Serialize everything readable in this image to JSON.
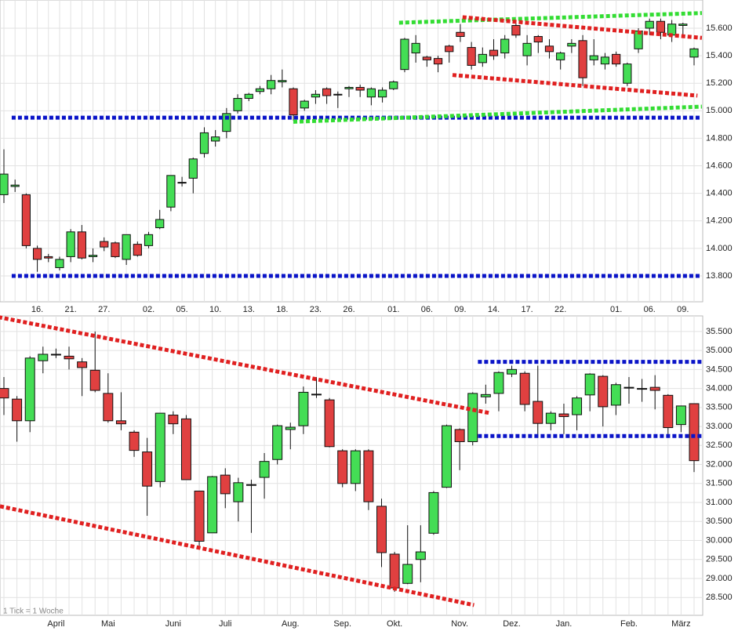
{
  "chart_data": [
    {
      "type": "candlestick",
      "up_color": "#44dd55",
      "down_color": "#e04040",
      "grid": true,
      "categories": [
        null,
        null,
        null,
        "16.",
        null,
        null,
        "21.",
        null,
        null,
        "27.",
        null,
        null,
        null,
        "02.",
        null,
        null,
        "05.",
        null,
        null,
        "10.",
        null,
        null,
        "13.",
        null,
        null,
        "18.",
        null,
        null,
        "23.",
        null,
        null,
        "26.",
        null,
        null,
        null,
        "01.",
        null,
        null,
        "06.",
        null,
        null,
        "09.",
        null,
        null,
        "14.",
        null,
        null,
        "17.",
        null,
        null,
        "22.",
        null,
        null,
        null,
        null,
        "01.",
        null,
        null,
        "06.",
        null,
        null,
        "09.",
        null
      ],
      "open": [
        14.39,
        14.45,
        14.39,
        14.0,
        13.94,
        13.86,
        13.94,
        14.12,
        13.94,
        14.05,
        14.04,
        13.92,
        14.03,
        14.02,
        14.15,
        14.3,
        14.48,
        14.51,
        14.69,
        14.78,
        14.85,
        15.0,
        15.09,
        15.14,
        15.16,
        15.21,
        15.16,
        15.02,
        15.1,
        15.16,
        15.12,
        15.16,
        15.17,
        15.1,
        15.1,
        15.16,
        15.3,
        15.42,
        15.39,
        15.38,
        15.47,
        15.57,
        15.46,
        15.35,
        15.44,
        15.42,
        15.62,
        15.4,
        15.54,
        15.47,
        15.37,
        15.47,
        15.51,
        15.37,
        15.34,
        15.41,
        15.2,
        15.45,
        15.6,
        15.65,
        15.55,
        15.62,
        15.39
      ],
      "high": [
        14.72,
        14.5,
        14.4,
        14.02,
        13.96,
        13.94,
        14.14,
        14.17,
        14.0,
        14.08,
        14.05,
        14.1,
        14.05,
        14.12,
        14.28,
        14.53,
        14.52,
        14.66,
        14.88,
        14.86,
        15.02,
        15.12,
        15.13,
        15.18,
        15.26,
        15.3,
        15.17,
        15.08,
        15.15,
        15.17,
        15.14,
        15.18,
        15.19,
        15.17,
        15.17,
        15.22,
        15.53,
        15.55,
        15.4,
        15.4,
        15.48,
        15.63,
        15.5,
        15.46,
        15.52,
        15.55,
        15.64,
        15.55,
        15.55,
        15.52,
        15.43,
        15.52,
        15.55,
        15.52,
        15.42,
        15.43,
        15.35,
        15.6,
        15.67,
        15.67,
        15.66,
        15.64,
        15.46
      ],
      "low": [
        14.33,
        14.41,
        14.0,
        13.83,
        13.9,
        13.84,
        13.9,
        13.92,
        13.9,
        13.98,
        13.93,
        13.88,
        13.94,
        14.0,
        14.14,
        14.27,
        14.45,
        14.4,
        14.66,
        14.74,
        14.8,
        14.98,
        15.07,
        15.12,
        15.12,
        15.17,
        14.93,
        15.0,
        15.05,
        15.05,
        15.02,
        15.1,
        15.1,
        15.04,
        15.06,
        15.15,
        15.28,
        15.35,
        15.32,
        15.28,
        15.35,
        15.5,
        15.3,
        15.32,
        15.37,
        15.38,
        15.53,
        15.33,
        15.42,
        15.38,
        15.3,
        15.42,
        15.18,
        15.33,
        15.3,
        15.32,
        15.18,
        15.42,
        15.55,
        15.52,
        15.5,
        15.55,
        15.33
      ],
      "close": [
        14.54,
        14.46,
        14.02,
        13.92,
        13.93,
        13.92,
        14.12,
        13.93,
        13.95,
        14.01,
        13.94,
        14.1,
        13.95,
        14.1,
        14.21,
        14.53,
        14.48,
        14.65,
        14.84,
        14.81,
        14.98,
        15.09,
        15.12,
        15.16,
        15.22,
        15.22,
        14.97,
        15.07,
        15.12,
        15.11,
        15.12,
        15.17,
        15.15,
        15.16,
        15.15,
        15.21,
        15.52,
        15.49,
        15.37,
        15.34,
        15.43,
        15.54,
        15.33,
        15.41,
        15.4,
        15.52,
        15.55,
        15.49,
        15.5,
        15.43,
        15.42,
        15.49,
        15.24,
        15.4,
        15.39,
        15.34,
        15.34,
        15.58,
        15.65,
        15.57,
        15.63,
        15.63,
        15.45
      ],
      "ylim": [
        13.612,
        15.805
      ],
      "yticks": [
        {
          "value": 13.8,
          "label": "13.800"
        },
        {
          "value": 14.0,
          "label": "14.000"
        },
        {
          "value": 14.2,
          "label": "14.200"
        },
        {
          "value": 14.4,
          "label": "14.400"
        },
        {
          "value": 14.6,
          "label": "14.600"
        },
        {
          "value": 14.8,
          "label": "14.800"
        },
        {
          "value": 15.0,
          "label": "15.000"
        },
        {
          "value": 15.2,
          "label": "15.200"
        },
        {
          "value": 15.4,
          "label": "15.400"
        },
        {
          "value": 15.6,
          "label": "15.600"
        }
      ],
      "lines": [
        {
          "color": "#0a14c8",
          "x": [
            0.7,
            62.7
          ],
          "y": [
            14.95,
            14.95
          ]
        },
        {
          "color": "#0a14c8",
          "x": [
            0.7,
            62.7
          ],
          "y": [
            13.8,
            13.8
          ]
        },
        {
          "color": "#33dd33",
          "x": [
            35.5,
            62.7
          ],
          "y": [
            15.64,
            15.71
          ]
        },
        {
          "color": "#33dd33",
          "x": [
            26,
            62.7
          ],
          "y": [
            14.92,
            15.03
          ]
        },
        {
          "color": "#e02020",
          "x": [
            41.2,
            62.7
          ],
          "y": [
            15.68,
            15.53
          ]
        },
        {
          "color": "#e02020",
          "x": [
            40.3,
            62.3
          ],
          "y": [
            15.26,
            15.11
          ]
        }
      ]
    },
    {
      "type": "candlestick",
      "up_color": "#44dd55",
      "down_color": "#e04040",
      "grid": true,
      "annotation": "1 Tick = 1 Woche",
      "categories": [
        null,
        null,
        null,
        null,
        "April",
        null,
        null,
        null,
        "Mai",
        null,
        null,
        null,
        null,
        "Juni",
        null,
        null,
        null,
        "Juli",
        null,
        null,
        null,
        null,
        "Aug.",
        null,
        null,
        null,
        "Sep.",
        null,
        null,
        null,
        "Okt.",
        null,
        null,
        null,
        null,
        "Nov.",
        null,
        null,
        null,
        "Dez.",
        null,
        null,
        null,
        "Jan.",
        null,
        null,
        null,
        null,
        "Feb.",
        null,
        null,
        null,
        "März",
        null
      ],
      "open": [
        34.0,
        33.72,
        33.15,
        34.73,
        34.88,
        34.85,
        34.7,
        34.48,
        33.87,
        33.15,
        32.85,
        32.33,
        31.55,
        33.3,
        33.2,
        31.3,
        30.2,
        31.72,
        31.02,
        31.45,
        31.66,
        32.13,
        32.92,
        33.02,
        33.85,
        33.7,
        32.36,
        31.5,
        32.36,
        30.9,
        29.64,
        28.87,
        29.5,
        30.19,
        31.4,
        32.92,
        32.6,
        33.78,
        33.87,
        34.38,
        34.4,
        33.66,
        33.08,
        33.33,
        33.31,
        33.83,
        34.32,
        33.56,
        34.03,
        34.0,
        34.03,
        33.82,
        33.05,
        33.6
      ],
      "high": [
        34.3,
        33.8,
        34.85,
        35.1,
        35.05,
        35.1,
        34.8,
        35.5,
        34.4,
        33.9,
        32.9,
        32.7,
        33.35,
        33.4,
        33.3,
        31.3,
        31.7,
        31.9,
        31.65,
        31.6,
        32.3,
        33.05,
        33.1,
        34.05,
        34.3,
        33.75,
        32.4,
        32.4,
        32.4,
        31.1,
        29.7,
        30.4,
        30.4,
        31.3,
        33.05,
        32.95,
        33.9,
        34.1,
        34.45,
        34.6,
        34.45,
        34.6,
        33.4,
        33.6,
        33.8,
        34.4,
        34.35,
        34.15,
        34.3,
        34.25,
        34.35,
        33.85,
        33.55,
        33.6
      ],
      "low": [
        33.3,
        32.6,
        32.85,
        34.4,
        34.8,
        34.5,
        33.8,
        33.9,
        33.1,
        32.9,
        32.2,
        30.65,
        31.4,
        32.8,
        31.6,
        29.85,
        30.2,
        30.85,
        30.5,
        30.2,
        31.1,
        32.0,
        32.4,
        32.8,
        33.75,
        32.45,
        31.4,
        31.3,
        30.8,
        29.3,
        28.65,
        28.85,
        28.9,
        30.15,
        31.38,
        31.85,
        32.5,
        33.6,
        33.4,
        34.3,
        33.4,
        32.7,
        32.9,
        32.8,
        32.9,
        33.4,
        33.0,
        33.3,
        33.6,
        33.65,
        33.45,
        32.7,
        32.85,
        31.8
      ],
      "close": [
        33.75,
        33.15,
        34.8,
        34.9,
        34.9,
        34.78,
        34.55,
        33.95,
        33.15,
        33.07,
        32.37,
        31.43,
        33.35,
        33.07,
        31.6,
        29.98,
        31.68,
        31.23,
        31.52,
        31.47,
        32.08,
        33.02,
        32.98,
        33.9,
        33.85,
        32.47,
        31.5,
        32.36,
        31.02,
        29.68,
        28.75,
        29.37,
        29.7,
        31.26,
        33.02,
        32.6,
        33.87,
        33.84,
        34.42,
        34.5,
        33.58,
        33.08,
        33.35,
        33.26,
        33.75,
        34.38,
        33.52,
        34.1,
        34.03,
        34.0,
        33.95,
        32.97,
        33.54,
        32.1
      ],
      "ylim": [
        28.03,
        35.91
      ],
      "yticks": [
        {
          "value": 28.5,
          "label": "28.500"
        },
        {
          "value": 29.0,
          "label": "29.000"
        },
        {
          "value": 29.5,
          "label": "29.500"
        },
        {
          "value": 30.0,
          "label": "30.000"
        },
        {
          "value": 30.5,
          "label": "30.500"
        },
        {
          "value": 31.0,
          "label": "31.000"
        },
        {
          "value": 31.5,
          "label": "31.500"
        },
        {
          "value": 32.0,
          "label": "32.000"
        },
        {
          "value": 32.5,
          "label": "32.500"
        },
        {
          "value": 33.0,
          "label": "33.000"
        },
        {
          "value": 33.5,
          "label": "33.500"
        },
        {
          "value": 34.0,
          "label": "34.000"
        },
        {
          "value": 34.5,
          "label": "34.500"
        },
        {
          "value": 35.0,
          "label": "35.000"
        },
        {
          "value": 35.5,
          "label": "35.500"
        }
      ],
      "lines": [
        {
          "color": "#e02020",
          "x": [
            -0.9,
            37.35
          ],
          "y": [
            35.91,
            33.35
          ]
        },
        {
          "color": "#e02020",
          "x": [
            -0.3,
            36.1
          ],
          "y": [
            30.9,
            28.3
          ]
        },
        {
          "color": "#0a14c8",
          "x": [
            36.4,
            53.6
          ],
          "y": [
            34.7,
            34.7
          ]
        },
        {
          "color": "#0a14c8",
          "x": [
            36.4,
            53.6
          ],
          "y": [
            32.75,
            32.75
          ]
        }
      ]
    }
  ]
}
